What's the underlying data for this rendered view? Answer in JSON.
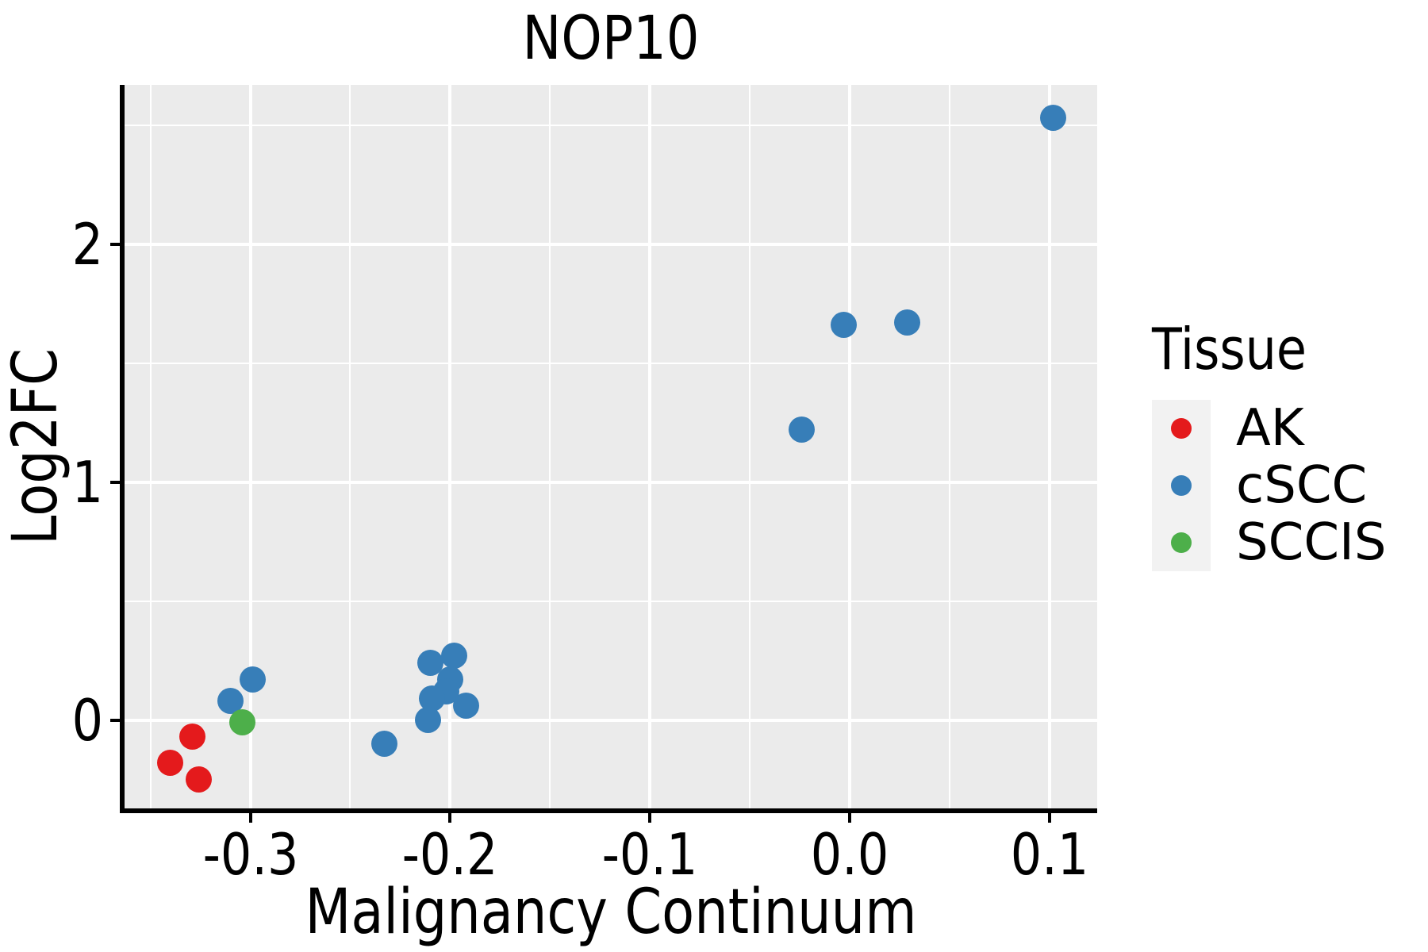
{
  "title": "NOP10",
  "chart_data": {
    "type": "scatter",
    "title": "NOP10",
    "xlabel": "Malignancy Continuum",
    "ylabel": "Log2FC",
    "xlim": [
      -0.363,
      0.124
    ],
    "ylim": [
      -0.371,
      2.669
    ],
    "grid": true,
    "colors": {
      "panel_background": "#EBEBEB",
      "gridline": "#FFFFFF",
      "axis_line": "#000000",
      "text": "#000000",
      "legend_key_background": "#F2F2F2"
    },
    "x_ticks": {
      "values": [
        -0.3,
        -0.2,
        -0.1,
        0.0,
        0.1
      ],
      "labels": [
        "-0.3",
        "-0.2",
        "-0.1",
        "0.0",
        "0.1"
      ]
    },
    "y_ticks": {
      "values": [
        0,
        1,
        2
      ],
      "labels": [
        "0",
        "1",
        "2"
      ]
    },
    "x_minor_gridlines": [
      -0.35,
      -0.25,
      -0.15,
      -0.05,
      0.05
    ],
    "y_minor_gridlines": [
      0.5,
      1.5,
      2.5
    ],
    "legend": {
      "title": "Tissue",
      "position": "right",
      "entries": [
        "AK",
        "cSCC",
        "SCCIS"
      ]
    },
    "series": [
      {
        "name": "AK",
        "color": "#E41A1C",
        "points": [
          [
            -0.329,
            -0.07
          ],
          [
            -0.34,
            -0.18
          ],
          [
            -0.326,
            -0.25
          ]
        ]
      },
      {
        "name": "cSCC",
        "color": "#377EB8",
        "points": [
          [
            0.102,
            2.53
          ],
          [
            0.029,
            1.67
          ],
          [
            -0.003,
            1.66
          ],
          [
            -0.024,
            1.22
          ],
          [
            -0.198,
            0.27
          ],
          [
            -0.21,
            0.24
          ],
          [
            -0.2,
            0.17
          ],
          [
            -0.202,
            0.12
          ],
          [
            -0.209,
            0.09
          ],
          [
            -0.192,
            0.06
          ],
          [
            -0.211,
            0.0
          ],
          [
            -0.233,
            -0.1
          ],
          [
            -0.299,
            0.17
          ],
          [
            -0.31,
            0.08
          ]
        ]
      },
      {
        "name": "SCCIS",
        "color": "#4DAF4A",
        "points": [
          [
            -0.304,
            -0.01
          ]
        ]
      }
    ]
  }
}
